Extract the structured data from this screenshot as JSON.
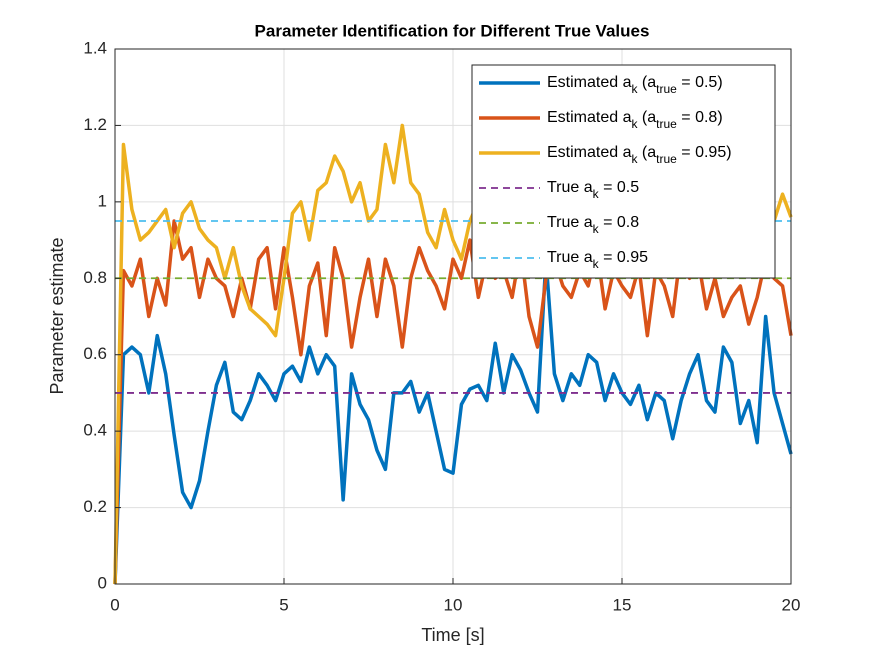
{
  "chart_data": {
    "type": "line",
    "title": "Parameter Identification for Different True Values",
    "xlabel": "Time [s]",
    "ylabel": "Parameter estimate",
    "xlim": [
      0,
      20
    ],
    "ylim": [
      0,
      1.4
    ],
    "xticks": [
      0,
      5,
      10,
      15,
      20
    ],
    "yticks": [
      0,
      0.2,
      0.4,
      0.6,
      0.8,
      1,
      1.2,
      1.4
    ],
    "grid": true,
    "legend_position": "northeast",
    "x": [
      0,
      0.25,
      0.5,
      0.75,
      1,
      1.25,
      1.5,
      1.75,
      2,
      2.25,
      2.5,
      2.75,
      3,
      3.25,
      3.5,
      3.75,
      4,
      4.25,
      4.5,
      4.75,
      5,
      5.25,
      5.5,
      5.75,
      6,
      6.25,
      6.5,
      6.75,
      7,
      7.25,
      7.5,
      7.75,
      8,
      8.25,
      8.5,
      8.75,
      9,
      9.25,
      9.5,
      9.75,
      10,
      10.25,
      10.5,
      10.75,
      11,
      11.25,
      11.5,
      11.75,
      12,
      12.25,
      12.5,
      12.75,
      13,
      13.25,
      13.5,
      13.75,
      14,
      14.25,
      14.5,
      14.75,
      15,
      15.25,
      15.5,
      15.75,
      16,
      16.25,
      16.5,
      16.75,
      17,
      17.25,
      17.5,
      17.75,
      18,
      18.25,
      18.5,
      18.75,
      19,
      19.25,
      19.5,
      19.75,
      20
    ],
    "series": [
      {
        "name": "Estimated a_{k} (a_{true} = 0.5)",
        "color": "#0072bd",
        "values": [
          0,
          0.6,
          0.62,
          0.6,
          0.5,
          0.65,
          0.55,
          0.39,
          0.24,
          0.2,
          0.27,
          0.4,
          0.52,
          0.58,
          0.45,
          0.43,
          0.48,
          0.55,
          0.52,
          0.48,
          0.55,
          0.57,
          0.53,
          0.62,
          0.55,
          0.6,
          0.57,
          0.22,
          0.55,
          0.47,
          0.43,
          0.35,
          0.3,
          0.5,
          0.5,
          0.53,
          0.45,
          0.5,
          0.4,
          0.3,
          0.29,
          0.47,
          0.51,
          0.52,
          0.48,
          0.63,
          0.5,
          0.6,
          0.56,
          0.5,
          0.45,
          0.85,
          0.55,
          0.48,
          0.55,
          0.52,
          0.6,
          0.58,
          0.48,
          0.55,
          0.5,
          0.47,
          0.52,
          0.43,
          0.5,
          0.48,
          0.38,
          0.48,
          0.55,
          0.6,
          0.48,
          0.45,
          0.62,
          0.58,
          0.42,
          0.48,
          0.37,
          0.7,
          0.5,
          0.42,
          0.34
        ]
      },
      {
        "name": "Estimated a_{k} (a_{true} = 0.8)",
        "color": "#d95319",
        "values": [
          0,
          0.82,
          0.78,
          0.85,
          0.7,
          0.8,
          0.73,
          0.95,
          0.85,
          0.88,
          0.75,
          0.85,
          0.8,
          0.78,
          0.7,
          0.8,
          0.72,
          0.85,
          0.88,
          0.72,
          0.88,
          0.75,
          0.6,
          0.78,
          0.84,
          0.65,
          0.88,
          0.8,
          0.62,
          0.75,
          0.85,
          0.7,
          0.85,
          0.78,
          0.62,
          0.8,
          0.88,
          0.82,
          0.78,
          0.72,
          0.85,
          0.8,
          0.9,
          0.75,
          0.85,
          0.8,
          0.82,
          0.75,
          0.88,
          0.7,
          0.62,
          0.8,
          0.85,
          0.78,
          0.75,
          0.82,
          0.78,
          0.88,
          0.72,
          0.82,
          0.78,
          0.75,
          0.83,
          0.65,
          0.82,
          0.78,
          0.7,
          0.88,
          0.8,
          0.85,
          0.72,
          0.8,
          0.7,
          0.75,
          0.78,
          0.68,
          0.75,
          0.85,
          0.8,
          0.78,
          0.65
        ]
      },
      {
        "name": "Estimated a_{k} (a_{true} = 0.95)",
        "color": "#edb120",
        "values": [
          0,
          1.15,
          0.98,
          0.9,
          0.92,
          0.95,
          0.98,
          0.88,
          0.97,
          1,
          0.93,
          0.9,
          0.88,
          0.8,
          0.88,
          0.78,
          0.72,
          0.7,
          0.68,
          0.65,
          0.8,
          0.97,
          1,
          0.9,
          1.03,
          1.05,
          1.12,
          1.08,
          1,
          1.05,
          0.95,
          0.98,
          1.15,
          1.05,
          1.2,
          1.05,
          1.02,
          0.92,
          0.88,
          0.98,
          0.9,
          0.85,
          0.95,
          1,
          0.95,
          0.98,
          1,
          0.93,
          0.97,
          0.95,
          0.9,
          1,
          0.96,
          0.93,
          0.98,
          0.92,
          0.97,
          1,
          0.94,
          0.9,
          0.96,
          1.02,
          0.93,
          0.97,
          0.95,
          0.9,
          0.98,
          1,
          0.93,
          0.96,
          0.92,
          0.99,
          0.95,
          0.97,
          0.91,
          0.98,
          0.94,
          1,
          0.95,
          1.02,
          0.96
        ]
      }
    ],
    "reference_lines": [
      {
        "name": "True a_{k} = 0.5",
        "color": "#7e2f8e",
        "value": 0.5
      },
      {
        "name": "True a_{k} = 0.8",
        "color": "#77ac30",
        "value": 0.8
      },
      {
        "name": "True a_{k} = 0.95",
        "color": "#4dbeee",
        "value": 0.95
      }
    ]
  }
}
